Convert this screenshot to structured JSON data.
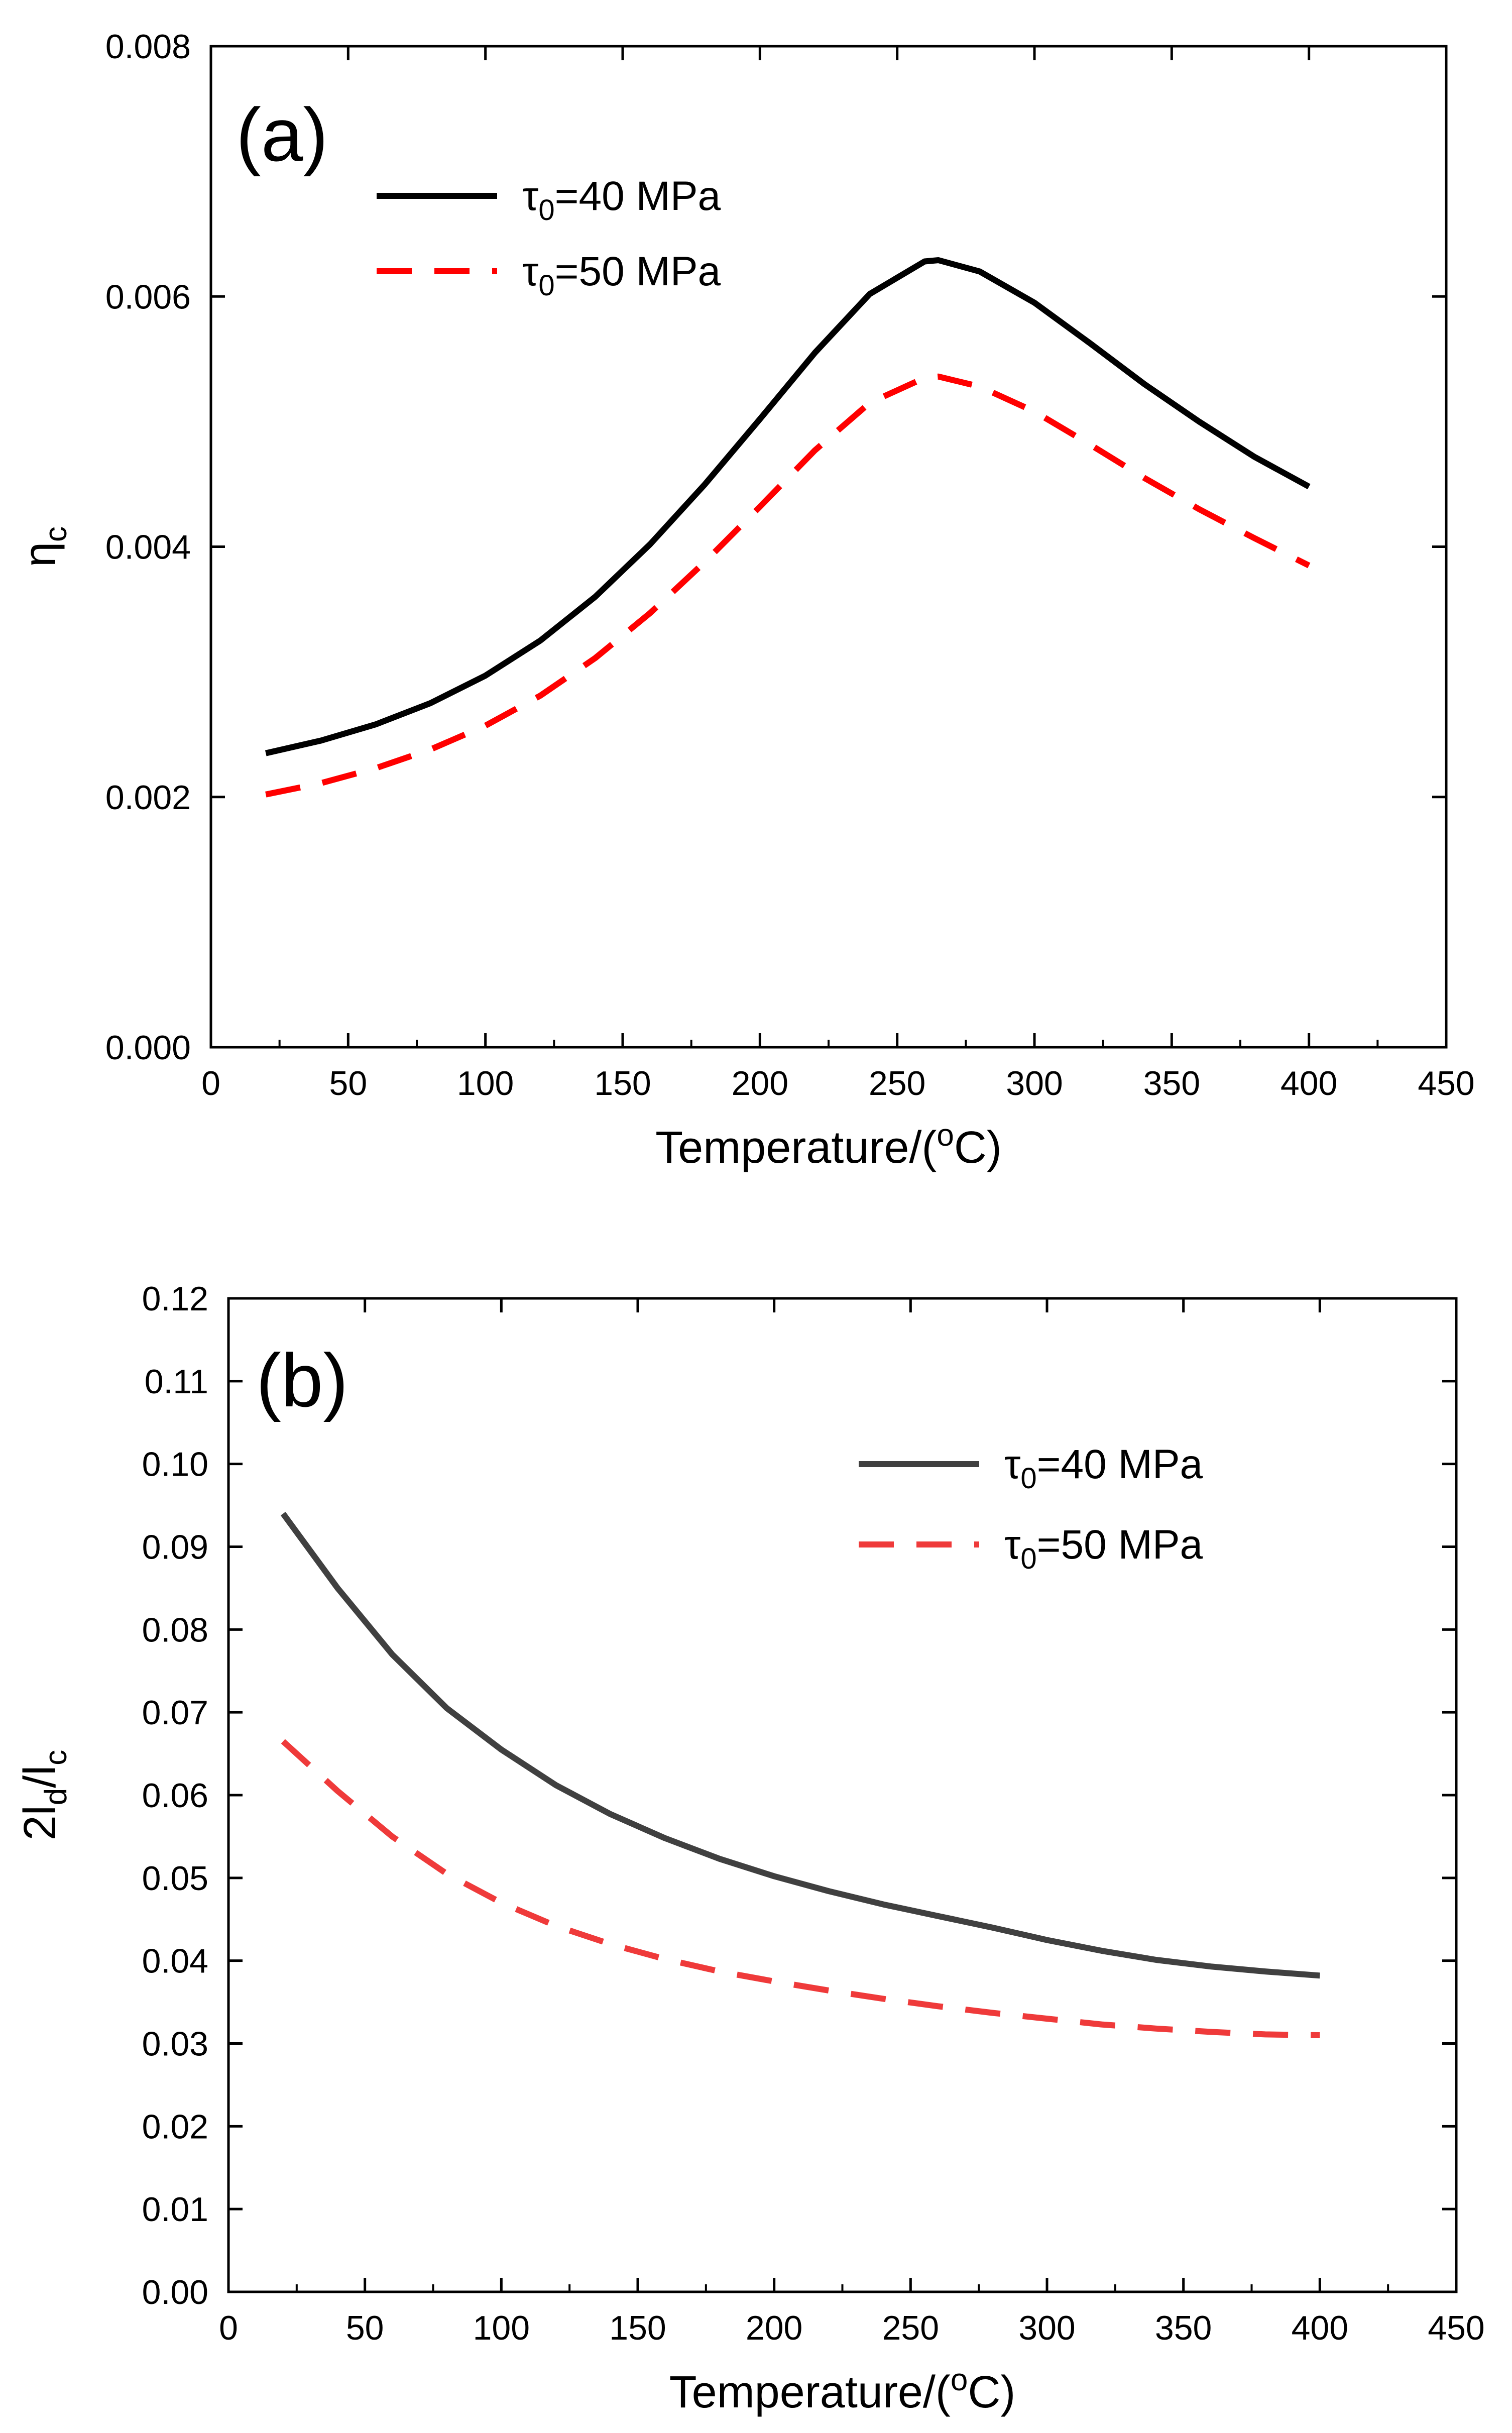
{
  "chart_data": [
    {
      "type": "line",
      "panel_label": "(a)",
      "xlabel": "Temperature/(",
      "xlabel_sup": "o",
      "xlabel_end": "C)",
      "ylabel": "η",
      "ylabel_sub": "c",
      "xlim": [
        0,
        450
      ],
      "ylim": [
        0,
        0.008
      ],
      "xticks": [
        "0",
        "50",
        "100",
        "150",
        "200",
        "250",
        "300",
        "350",
        "400",
        "450"
      ],
      "yticks": [
        "0.000",
        "0.002",
        "0.004",
        "0.006",
        "0.008"
      ],
      "grid": false,
      "legend_position": "top-left",
      "x": [
        20,
        40,
        60,
        80,
        100,
        120,
        140,
        160,
        180,
        200,
        220,
        240,
        260,
        265,
        280,
        300,
        320,
        340,
        360,
        380,
        400
      ],
      "series": [
        {
          "name_prefix": "τ",
          "name_sub": "0",
          "name_suffix": "=40 MPa",
          "color": "#000000",
          "dash": "solid",
          "values": [
            0.00235,
            0.00245,
            0.00258,
            0.00275,
            0.00297,
            0.00325,
            0.0036,
            0.00402,
            0.0045,
            0.00502,
            0.00555,
            0.00602,
            0.00628,
            0.00629,
            0.0062,
            0.00595,
            0.00563,
            0.0053,
            0.005,
            0.00472,
            0.00448
          ]
        },
        {
          "name_prefix": "τ",
          "name_sub": "0",
          "name_suffix": "=50 MPa",
          "color": "#ff0000",
          "dash": "dashed",
          "values": [
            0.00202,
            0.00211,
            0.00223,
            0.00238,
            0.00257,
            0.00281,
            0.00311,
            0.00347,
            0.00388,
            0.00432,
            0.00477,
            0.00515,
            0.00535,
            0.00536,
            0.00528,
            0.00508,
            0.00482,
            0.00455,
            0.0043,
            0.00407,
            0.00385
          ]
        }
      ]
    },
    {
      "type": "line",
      "panel_label": "(b)",
      "xlabel": "Temperature/(",
      "xlabel_sup": "o",
      "xlabel_end": "C)",
      "ylabel": "2l",
      "ylabel_sub": "d",
      "ylabel_mid": "/l",
      "ylabel_sub2": "c",
      "xlim": [
        0,
        450
      ],
      "ylim": [
        0,
        0.12
      ],
      "xticks": [
        "0",
        "50",
        "100",
        "150",
        "200",
        "250",
        "300",
        "350",
        "400",
        "450"
      ],
      "yticks": [
        "0.00",
        "0.01",
        "0.02",
        "0.03",
        "0.04",
        "0.05",
        "0.06",
        "0.07",
        "0.08",
        "0.09",
        "0.10",
        "0.11",
        "0.12"
      ],
      "grid": false,
      "legend_position": "top-right",
      "x": [
        20,
        40,
        60,
        80,
        100,
        120,
        140,
        160,
        180,
        200,
        220,
        240,
        260,
        280,
        300,
        320,
        340,
        360,
        380,
        400
      ],
      "series": [
        {
          "name_prefix": "τ",
          "name_sub": "0",
          "name_suffix": "=40 MPa",
          "color": "#404040",
          "dash": "solid",
          "values": [
            0.094,
            0.085,
            0.077,
            0.0705,
            0.0655,
            0.0612,
            0.0577,
            0.0548,
            0.0523,
            0.0502,
            0.0484,
            0.0468,
            0.0454,
            0.044,
            0.0425,
            0.0412,
            0.0401,
            0.0393,
            0.0387,
            0.0382
          ]
        },
        {
          "name_prefix": "τ",
          "name_sub": "0",
          "name_suffix": "=50 MPa",
          "color": "#ef3a3a",
          "dash": "dashed",
          "values": [
            0.0665,
            0.0605,
            0.055,
            0.0505,
            0.047,
            0.0442,
            0.042,
            0.0402,
            0.0387,
            0.0375,
            0.0364,
            0.0354,
            0.0345,
            0.0337,
            0.033,
            0.0323,
            0.0318,
            0.0314,
            0.0311,
            0.031
          ]
        }
      ]
    }
  ]
}
